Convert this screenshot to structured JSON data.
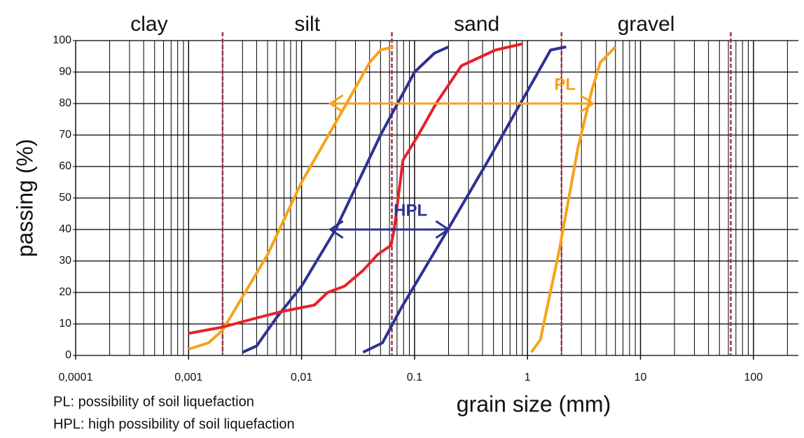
{
  "chart_data": {
    "type": "line",
    "xlabel": "grain size (mm)",
    "ylabel": "passing (%)",
    "xscale": "log",
    "xlim": [
      0.0001,
      250
    ],
    "ylim": [
      0,
      100
    ],
    "xticks": [
      {
        "value": 0.0001,
        "label": "0,0001"
      },
      {
        "value": 0.001,
        "label": "0,001"
      },
      {
        "value": 0.01,
        "label": "0,01"
      },
      0.1,
      1,
      10,
      100
    ],
    "yticks": [
      0,
      10,
      20,
      30,
      40,
      50,
      60,
      70,
      80,
      90,
      100
    ],
    "grid": true,
    "zone_labels": [
      "clay",
      "silt",
      "sand",
      "gravel"
    ],
    "zone_boundaries": [
      0.002,
      0.063,
      2,
      63
    ],
    "boundary_color": "#a0344a",
    "series": [
      {
        "color": "#f7a21b",
        "x": [
          0.001,
          0.0015,
          0.002,
          0.005,
          0.01,
          0.025,
          0.04,
          0.05,
          0.065
        ],
        "values": [
          2,
          4,
          8,
          32,
          55,
          80,
          93,
          97,
          98
        ]
      },
      {
        "color": "#2e3192",
        "x": [
          0.003,
          0.004,
          0.006,
          0.01,
          0.02,
          0.05,
          0.1,
          0.15,
          0.2
        ],
        "values": [
          1,
          3,
          12,
          22,
          40,
          70,
          90,
          96,
          98
        ]
      },
      {
        "color": "#e8212a",
        "x": [
          0.001,
          0.002,
          0.0041,
          0.0068,
          0.013,
          0.017,
          0.024,
          0.035,
          0.047,
          0.062,
          0.066,
          0.079,
          0.108,
          0.155,
          0.26,
          0.52,
          0.91
        ],
        "values": [
          7,
          9,
          12,
          14,
          16,
          20,
          22,
          27,
          32,
          35,
          40,
          62,
          70,
          80,
          92,
          97,
          99
        ]
      },
      {
        "color": "#2e3192",
        "x": [
          0.035,
          0.052,
          0.076,
          0.19,
          0.45,
          1,
          1.6,
          2.2
        ],
        "values": [
          1,
          4,
          15,
          39,
          62,
          84,
          97,
          98
        ]
      },
      {
        "color": "#f7a21b",
        "x": [
          1.08,
          1.3,
          1.9,
          2.8,
          3.7,
          4.4,
          6
        ],
        "values": [
          1,
          5,
          33,
          66,
          84,
          93,
          98
        ]
      }
    ],
    "annotations": [
      {
        "text": "PL",
        "x": [
          0.018,
          3.8
        ],
        "y": 80,
        "color": "#f7a21b"
      },
      {
        "text": "HPL",
        "x": [
          0.018,
          0.2
        ],
        "y": 40,
        "color": "#2e3192"
      }
    ],
    "notes": [
      "PL: possibility of soil liquefaction",
      "HPL: high possibility of soil liquefaction"
    ]
  }
}
